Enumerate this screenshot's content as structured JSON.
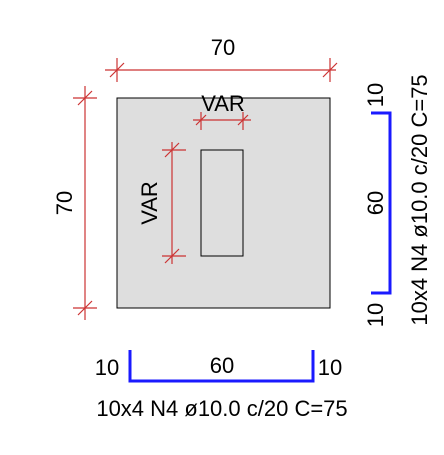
{
  "colors": {
    "dimension": "#cc3333",
    "rebar": "#1a1aff",
    "concrete": "#dedede",
    "outline": "#000000"
  },
  "dimensions": {
    "width": "70",
    "height": "70",
    "opening_width": "VAR",
    "opening_height": "VAR"
  },
  "bottom_bar": {
    "left_leg": "10",
    "span": "60",
    "right_leg": "10",
    "spec": "10x4 N4 ø10.0 c/20  C=75"
  },
  "side_bar": {
    "top_leg": "10",
    "span": "60",
    "bottom_leg": "10",
    "spec": "10x4 N4 ø10.0 c/20  C=75"
  }
}
